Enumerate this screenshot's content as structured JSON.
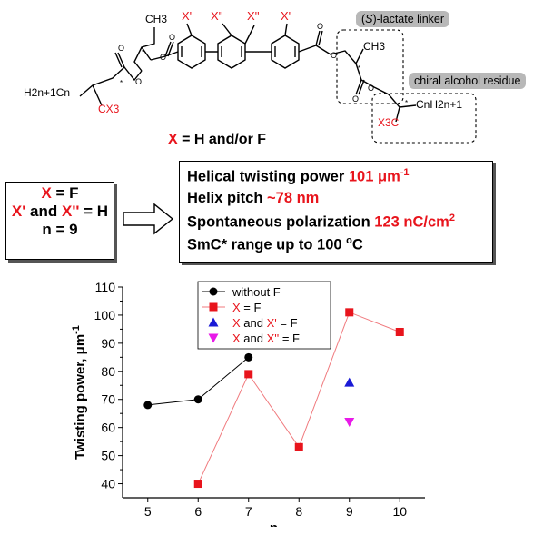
{
  "molecule": {
    "left_chain": "H2n+1Cn",
    "left_cx3": "CX3",
    "methyl_left": "CH3",
    "methyl_right": "CH3",
    "right_x3c": "X3C",
    "right_chain": "CnH2n+1",
    "ring_labels": [
      "X'",
      "X''",
      "X''",
      "X'"
    ],
    "lactate_tag_prefix": "(",
    "lactate_tag_S": "S",
    "lactate_tag_suffix": ")-lactate linker",
    "alcohol_tag": "chiral alcohol residue",
    "x_definition_x": "X",
    "x_definition_rest": " = H and/or F",
    "colors": {
      "substituent": "#e8141c",
      "bonds": "#000000",
      "tag_background": "#b8b8b8"
    }
  },
  "conditions": {
    "x": "X",
    "x_value": " = F",
    "x_prime": "X'",
    "and_word": " and ",
    "x_dprime": "X''",
    "xx_value": " = H",
    "n_line": "n = 9"
  },
  "properties": {
    "htp_label": "Helical twisting power ",
    "htp_value": "101",
    "htp_unit": " μm",
    "htp_exp": "-1",
    "pitch_label": "Helix pitch ",
    "pitch_value": "~78 nm",
    "ps_label": "Spontaneous polarization ",
    "ps_value": "123 nC/cm",
    "ps_exp": "2",
    "smc_label": "SmC* range up to 100 ",
    "smc_deg": "o",
    "smc_unit": "C",
    "value_color": "#e8141c"
  },
  "chart_data": {
    "type": "scatter",
    "title": "",
    "xlabel": "n",
    "ylabel": "Twisting power, μm",
    "ylabel_exp": "-1",
    "xlim": [
      4.5,
      10.5
    ],
    "ylim": [
      35,
      110
    ],
    "xticks": [
      5,
      6,
      7,
      8,
      9,
      10
    ],
    "yticks": [
      40,
      50,
      60,
      70,
      80,
      90,
      100,
      110
    ],
    "grid": false,
    "legend_position": "top-center",
    "series": [
      {
        "name": "without F",
        "marker": "circle",
        "color": "#000000",
        "line_color": "#000000",
        "connected": true,
        "x": [
          5,
          6,
          7
        ],
        "y": [
          68,
          70,
          85
        ]
      },
      {
        "name": "X = F",
        "marker": "square",
        "color": "#e8141c",
        "line_color": "#f07a7e",
        "connected": true,
        "x": [
          6,
          7,
          8,
          9,
          10
        ],
        "y": [
          40,
          79,
          53,
          101,
          94
        ]
      },
      {
        "name": "X and X' = F",
        "marker": "triangle-up",
        "color": "#1a1ad6",
        "connected": false,
        "x": [
          9
        ],
        "y": [
          76
        ]
      },
      {
        "name": "X and X'' = F",
        "marker": "triangle-down",
        "color": "#e81ae8",
        "connected": false,
        "x": [
          9
        ],
        "y": [
          62
        ]
      }
    ],
    "legend_entries": [
      {
        "parts": [
          {
            "text": "without F",
            "color": "#000000"
          }
        ]
      },
      {
        "parts": [
          {
            "text": "X",
            "color": "#e8141c"
          },
          {
            "text": " = F",
            "color": "#000000"
          }
        ]
      },
      {
        "parts": [
          {
            "text": "X",
            "color": "#e8141c"
          },
          {
            "text": " and ",
            "color": "#000000"
          },
          {
            "text": "X'",
            "color": "#e8141c"
          },
          {
            "text": " = F",
            "color": "#000000"
          }
        ]
      },
      {
        "parts": [
          {
            "text": "X",
            "color": "#e8141c"
          },
          {
            "text": " and ",
            "color": "#000000"
          },
          {
            "text": "X''",
            "color": "#e8141c"
          },
          {
            "text": " = F",
            "color": "#000000"
          }
        ]
      }
    ]
  }
}
